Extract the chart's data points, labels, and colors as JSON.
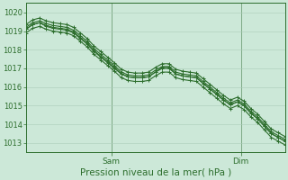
{
  "title": "",
  "xlabel": "Pression niveau de la mer( hPa )",
  "ylabel": "",
  "bg_color": "#cce8d8",
  "grid_color": "#aaccb8",
  "line_color": "#2d6e2d",
  "ylim": [
    1012.5,
    1020.5
  ],
  "xlim": [
    0,
    47
  ],
  "yticks": [
    1013,
    1014,
    1015,
    1016,
    1017,
    1018,
    1019,
    1020
  ],
  "xtick_positions": [
    15.5,
    39.0
  ],
  "xtick_labels": [
    "Sam",
    "Dim"
  ],
  "series": [
    [
      1019.1,
      1019.35,
      1019.45,
      1019.25,
      1019.15,
      1019.1,
      1019.05,
      1018.9,
      1018.6,
      1018.3,
      1017.9,
      1017.6,
      1017.3,
      1017.0,
      1016.7,
      1016.55,
      1016.5,
      1016.5,
      1016.55,
      1016.8,
      1017.05,
      1017.05,
      1016.7,
      1016.6,
      1016.55,
      1016.5,
      1016.2,
      1015.9,
      1015.6,
      1015.3,
      1015.05,
      1015.2,
      1015.0,
      1014.6,
      1014.3,
      1013.9,
      1013.5,
      1013.3,
      1013.1
    ],
    [
      1019.2,
      1019.45,
      1019.55,
      1019.4,
      1019.3,
      1019.25,
      1019.2,
      1019.05,
      1018.75,
      1018.45,
      1018.05,
      1017.75,
      1017.45,
      1017.15,
      1016.8,
      1016.65,
      1016.6,
      1016.6,
      1016.65,
      1016.9,
      1017.1,
      1017.1,
      1016.8,
      1016.7,
      1016.65,
      1016.6,
      1016.3,
      1016.0,
      1015.7,
      1015.4,
      1015.15,
      1015.3,
      1015.1,
      1014.7,
      1014.4,
      1014.0,
      1013.6,
      1013.4,
      1013.2
    ],
    [
      1019.35,
      1019.6,
      1019.7,
      1019.55,
      1019.45,
      1019.4,
      1019.35,
      1019.2,
      1018.9,
      1018.6,
      1018.2,
      1017.9,
      1017.6,
      1017.3,
      1016.95,
      1016.8,
      1016.75,
      1016.75,
      1016.8,
      1017.05,
      1017.25,
      1017.25,
      1016.95,
      1016.85,
      1016.8,
      1016.75,
      1016.45,
      1016.15,
      1015.85,
      1015.55,
      1015.3,
      1015.45,
      1015.25,
      1014.85,
      1014.55,
      1014.15,
      1013.75,
      1013.55,
      1013.35
    ],
    [
      1019.1,
      1019.35,
      1019.45,
      1019.3,
      1019.2,
      1019.15,
      1019.1,
      1018.95,
      1018.65,
      1018.35,
      1017.95,
      1017.65,
      1017.35,
      1017.05,
      1016.7,
      1016.55,
      1016.5,
      1016.5,
      1016.55,
      1016.8,
      1017.0,
      1017.0,
      1016.7,
      1016.6,
      1016.55,
      1016.5,
      1016.2,
      1015.9,
      1015.6,
      1015.3,
      1015.05,
      1015.2,
      1015.0,
      1014.6,
      1014.3,
      1013.9,
      1013.5,
      1013.3,
      1013.1
    ],
    [
      1018.9,
      1019.15,
      1019.25,
      1019.1,
      1019.0,
      1018.95,
      1018.9,
      1018.75,
      1018.45,
      1018.15,
      1017.75,
      1017.45,
      1017.15,
      1016.85,
      1016.5,
      1016.35,
      1016.3,
      1016.3,
      1016.35,
      1016.6,
      1016.8,
      1016.8,
      1016.5,
      1016.4,
      1016.35,
      1016.3,
      1016.0,
      1015.7,
      1015.4,
      1015.1,
      1014.85,
      1015.0,
      1014.8,
      1014.4,
      1014.1,
      1013.7,
      1013.3,
      1013.1,
      1012.9
    ]
  ],
  "marker": "+",
  "marker_size": 3,
  "linewidth": 0.8,
  "xlabel_fontsize": 7.5,
  "ytick_fontsize": 6,
  "xtick_fontsize": 6.5
}
